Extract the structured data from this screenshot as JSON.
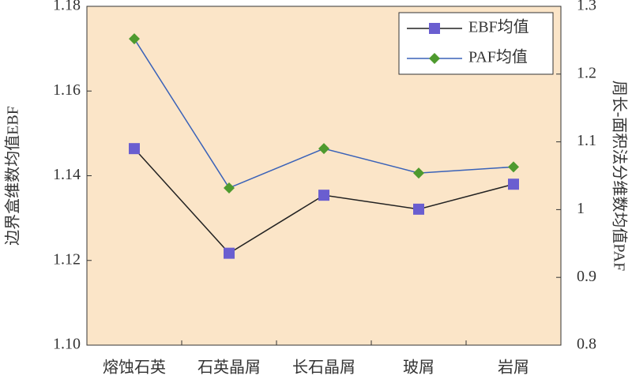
{
  "chart_data": {
    "type": "line",
    "categories": [
      "熔蚀石英",
      "石英晶屑",
      "长石晶屑",
      "玻屑",
      "岩屑"
    ],
    "series": [
      {
        "name": "EBF均值",
        "color": "#6a5ed0",
        "line_color": "#222222",
        "marker": "square",
        "values": [
          1.1464,
          1.1217,
          1.1354,
          1.1321,
          1.138
        ]
      },
      {
        "name": "PAF均值",
        "color": "#4e9a2e",
        "line_color": "#3a62b8",
        "marker": "diamond",
        "axis": "y2",
        "values": [
          1.252,
          1.032,
          1.09,
          1.054,
          1.063
        ]
      }
    ],
    "ylabel": "边界盒维数均值EBF",
    "y2label": "周长-面积法分维数均值PAF",
    "ylim": [
      1.1,
      1.18
    ],
    "yticks": [
      {
        "value": 1.1,
        "label": "1.10"
      },
      1.12,
      1.14,
      1.16,
      1.18
    ],
    "y2lim": [
      0.8,
      1.3
    ],
    "y2ticks": [
      0.8,
      0.9,
      1,
      1.1,
      1.2,
      1.3
    ],
    "legend": "upper right",
    "background": "#fbe5c8"
  }
}
